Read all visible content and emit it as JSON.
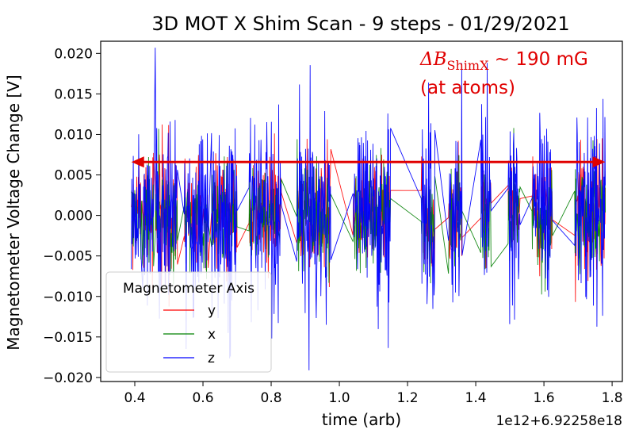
{
  "chart_data": {
    "type": "line",
    "title": "3D MOT X Shim Scan - 9 steps - 01/29/2021",
    "xlabel": "time (arb)",
    "ylabel": "Magnetometer Voltage Change [V]",
    "x_offset_label": "1e12+6.92258e18",
    "xlim": [
      0.3,
      1.83
    ],
    "ylim": [
      -0.0205,
      0.0215
    ],
    "xticks": [
      0.4,
      0.6,
      0.8,
      1.0,
      1.2,
      1.4,
      1.6,
      1.8
    ],
    "xtick_labels": [
      "0.4",
      "0.6",
      "0.8",
      "1.0",
      "1.2",
      "1.4",
      "1.6",
      "1.8"
    ],
    "yticks": [
      0.02,
      0.015,
      0.01,
      0.005,
      0.0,
      -0.005,
      -0.01,
      -0.015,
      -0.02
    ],
    "ytick_labels": [
      "0.020",
      "0.015",
      "0.010",
      "0.005",
      "0.000",
      "−0.005",
      "−0.010",
      "−0.015",
      "−0.020"
    ],
    "steps": [
      {
        "start": 0.39,
        "end": 0.455
      },
      {
        "start": 0.46,
        "end": 0.525
      },
      {
        "start": 0.545,
        "end": 0.615
      },
      {
        "start": 0.625,
        "end": 0.7
      },
      {
        "start": 0.735,
        "end": 0.83
      },
      {
        "start": 0.875,
        "end": 0.975
      },
      {
        "start": 1.04,
        "end": 1.15
      },
      {
        "start": 1.24,
        "end": 1.28
      },
      {
        "start": 1.32,
        "end": 1.36
      },
      {
        "start": 1.415,
        "end": 1.445
      },
      {
        "start": 1.495,
        "end": 1.53
      },
      {
        "start": 1.565,
        "end": 1.625
      },
      {
        "start": 1.69,
        "end": 1.78
      }
    ],
    "series": [
      {
        "name": "y",
        "color": "#ff0000",
        "amplitude": 0.006,
        "offset": 0.0003
      },
      {
        "name": "x",
        "color": "#008000",
        "amplitude": 0.0055,
        "offset": -0.0002
      },
      {
        "name": "z",
        "color": "#0000ff",
        "amplitude": 0.0105,
        "offset": 0.0
      }
    ],
    "legend": {
      "title": "Magnetometer Axis",
      "entries": [
        "y",
        "x",
        "z"
      ],
      "position": "lower-left"
    },
    "annotation": {
      "text_prefix": "ΔB",
      "text_sub": "ShimX",
      "text_suffix": " ~ 190 mG",
      "text_line2": "(at atoms)",
      "color": "#e00000",
      "arrow_x_from": 0.39,
      "arrow_x_to": 1.78,
      "arrow_y": 0.0066
    }
  }
}
